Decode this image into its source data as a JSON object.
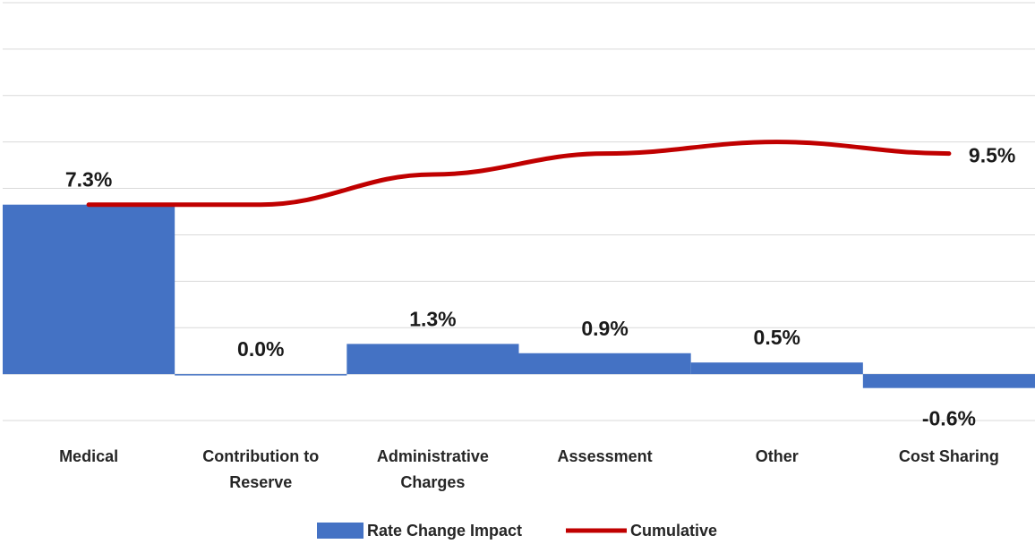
{
  "chart_data": {
    "type": "bar",
    "categories": [
      [
        "Medical"
      ],
      [
        "Contribution to",
        "Reserve"
      ],
      [
        "Administrative",
        "Charges"
      ],
      [
        "Assessment"
      ],
      [
        "Other"
      ],
      [
        "Cost Sharing"
      ]
    ],
    "series": [
      {
        "name": "Rate Change Impact",
        "kind": "bar",
        "color": "#4472C4",
        "values": [
          7.3,
          0.0,
          1.3,
          0.9,
          0.5,
          -0.6
        ],
        "labels": [
          "7.3%",
          "0.0%",
          "1.3%",
          "0.9%",
          "0.5%",
          "-0.6%"
        ]
      },
      {
        "name": "Cumulative",
        "kind": "line",
        "color": "#C00000",
        "values": [
          7.3,
          7.3,
          8.6,
          9.5,
          10.0,
          9.5
        ],
        "end_label": "9.5%"
      }
    ],
    "ylim": [
      -2,
      16
    ],
    "gridlines": [
      -2,
      0,
      2,
      4,
      6,
      8,
      10,
      12,
      14,
      16
    ],
    "grid": true,
    "legend": "bottom"
  }
}
